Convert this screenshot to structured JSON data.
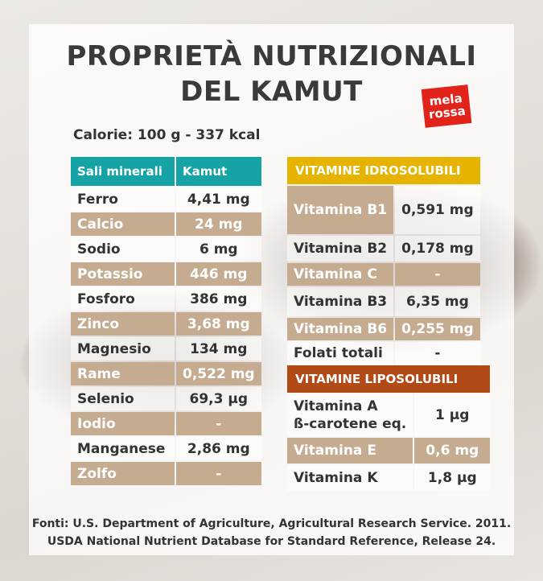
{
  "title_line1": "PROPRIETÀ NUTRIZIONALI",
  "title_line2": "DEL KAMUT",
  "logo": {
    "line1": "mela",
    "line2": "rossa"
  },
  "calories": "Calorie: 100 g - 337 kcal",
  "minerals": {
    "header_name": "Sali minerali",
    "header_value": "Kamut",
    "rows": [
      {
        "name": "Ferro",
        "value": "4,41 mg"
      },
      {
        "name": "Calcio",
        "value": "24 mg"
      },
      {
        "name": "Sodio",
        "value": "6 mg"
      },
      {
        "name": "Potassio",
        "value": "446 mg"
      },
      {
        "name": "Fosforo",
        "value": "386 mg"
      },
      {
        "name": "Zinco",
        "value": "3,68 mg"
      },
      {
        "name": "Magnesio",
        "value": "134 mg"
      },
      {
        "name": "Rame",
        "value": "0,522 mg"
      },
      {
        "name": "Selenio",
        "value": "69,3 µg"
      },
      {
        "name": "Iodio",
        "value": "-"
      },
      {
        "name": "Manganese",
        "value": "2,86 mg"
      },
      {
        "name": "Zolfo",
        "value": "-"
      }
    ]
  },
  "water_soluble": {
    "header": "VITAMINE IDROSOLUBILI",
    "rows": [
      {
        "name": "Vitamina B1",
        "value": "0,591 mg"
      },
      {
        "name": "Vitamina B2",
        "value": "0,178 mg"
      },
      {
        "name": "Vitamina C",
        "value": "-"
      },
      {
        "name": "Vitamina B3",
        "value": "6,35 mg"
      },
      {
        "name": "Vitamina B6",
        "value": "0,255 mg"
      },
      {
        "name": "Folati totali",
        "value": "-"
      }
    ]
  },
  "fat_soluble": {
    "header": "VITAMINE LIPOSOLUBILI",
    "rows": [
      {
        "name": "Vitamina A",
        "name2": "ß-carotene eq.",
        "value": "1 µg"
      },
      {
        "name": "Vitamina E",
        "value": "0,6 mg"
      },
      {
        "name": "Vitamina K",
        "value": "1,8 µg"
      }
    ]
  },
  "sources_line1": "Fonti: U.S. Department of Agriculture, Agricultural Research Service. 2011.",
  "sources_line2": "USDA National Nutrient Database for Standard Reference, Release 24.",
  "colors": {
    "teal": "#16a3a6",
    "yellow": "#e6b400",
    "rust": "#b14a16",
    "tan": "#c5ab8f",
    "logo_red": "#e2231a"
  }
}
